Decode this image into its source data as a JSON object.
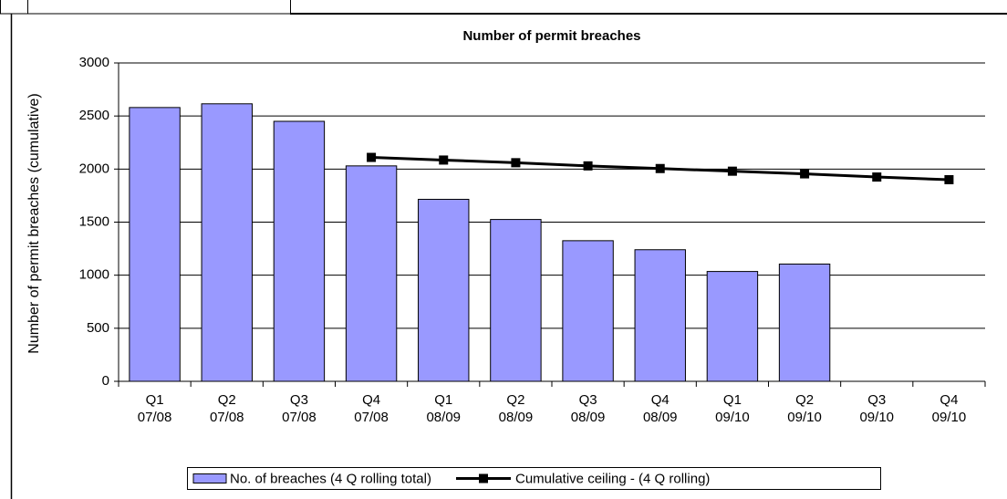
{
  "chart_data": {
    "type": "bar_line",
    "title": "Number of permit breaches",
    "y_label": "Number of permit breaches (cumulative)",
    "categories": [
      [
        "Q1",
        "07/08"
      ],
      [
        "Q2",
        "07/08"
      ],
      [
        "Q3",
        "07/08"
      ],
      [
        "Q4",
        "07/08"
      ],
      [
        "Q1",
        "08/09"
      ],
      [
        "Q2",
        "08/09"
      ],
      [
        "Q3",
        "08/09"
      ],
      [
        "Q4",
        "08/09"
      ],
      [
        "Q1",
        "09/10"
      ],
      [
        "Q2",
        "09/10"
      ],
      [
        "Q3",
        "09/10"
      ],
      [
        "Q4",
        "09/10"
      ]
    ],
    "series": [
      {
        "name": "No. of breaches (4 Q rolling total)",
        "type": "bar",
        "color": "#9999ff",
        "values": [
          2580,
          2615,
          2450,
          2030,
          1715,
          1525,
          1325,
          1240,
          1035,
          1105,
          null,
          null
        ]
      },
      {
        "name": "Cumulative ceiling - (4 Q rolling)",
        "type": "line",
        "color": "#000000",
        "values": [
          null,
          null,
          null,
          2110,
          2085,
          2060,
          2030,
          2005,
          1980,
          1955,
          1925,
          1900
        ]
      }
    ],
    "ylim": [
      0,
      3000
    ],
    "yticks": [
      0,
      500,
      1000,
      1500,
      2000,
      2500,
      3000
    ],
    "grid": true,
    "legend": "bottom"
  }
}
